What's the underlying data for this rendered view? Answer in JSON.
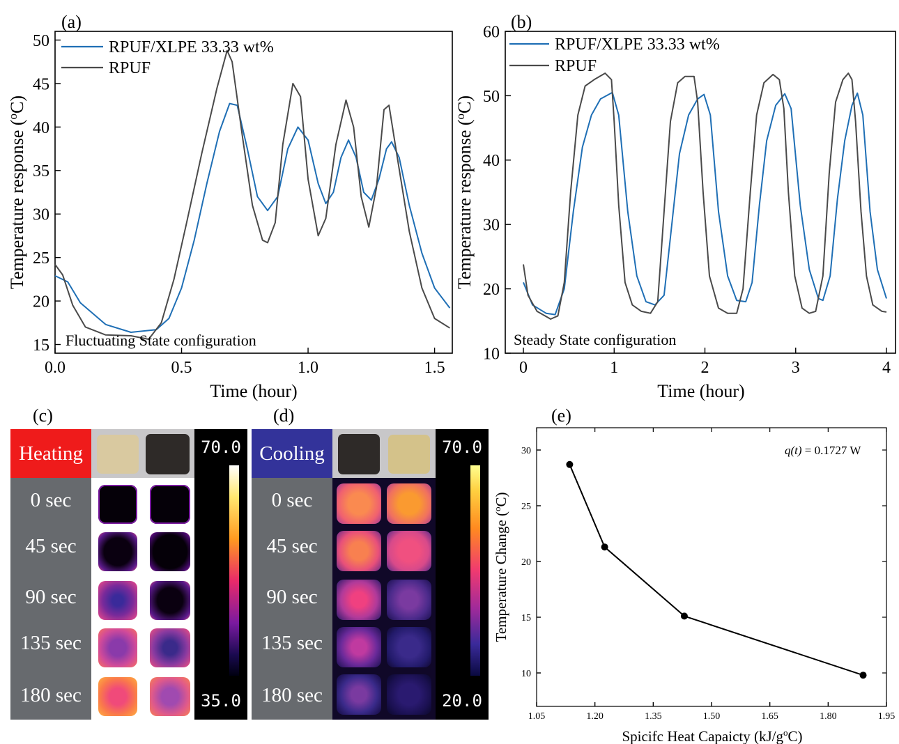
{
  "chart_data": [
    {
      "panel": "(a)",
      "type": "line",
      "xlabel": "Time (hour)",
      "ylabel": "Temperature response (oC)",
      "xlim": [
        0,
        1.57
      ],
      "ylim": [
        14,
        51
      ],
      "xticks": [
        "0.0",
        "0.5",
        "1.0",
        "1.5"
      ],
      "yticks": [
        "15",
        "20",
        "25",
        "30",
        "35",
        "40",
        "45",
        "50"
      ],
      "annotation": "Fluctuating State configuration",
      "legend_position": "top-left",
      "series": [
        {
          "name": "RPUF/XLPE 33.33 wt%",
          "color": "#1f6fb5",
          "points": [
            [
              0,
              22.9
            ],
            [
              0.05,
              22.2
            ],
            [
              0.1,
              19.8
            ],
            [
              0.2,
              17.3
            ],
            [
              0.3,
              16.4
            ],
            [
              0.4,
              16.7
            ],
            [
              0.45,
              18.0
            ],
            [
              0.5,
              21.5
            ],
            [
              0.55,
              27.0
            ],
            [
              0.6,
              33.5
            ],
            [
              0.65,
              39.5
            ],
            [
              0.69,
              42.7
            ],
            [
              0.72,
              42.5
            ],
            [
              0.76,
              37.5
            ],
            [
              0.8,
              32.0
            ],
            [
              0.84,
              30.4
            ],
            [
              0.88,
              32.0
            ],
            [
              0.92,
              37.5
            ],
            [
              0.96,
              40.0
            ],
            [
              1.0,
              38.5
            ],
            [
              1.04,
              33.5
            ],
            [
              1.07,
              31.2
            ],
            [
              1.1,
              32.5
            ],
            [
              1.13,
              36.5
            ],
            [
              1.16,
              38.5
            ],
            [
              1.19,
              36.5
            ],
            [
              1.22,
              32.5
            ],
            [
              1.25,
              31.6
            ],
            [
              1.28,
              34.0
            ],
            [
              1.31,
              37.5
            ],
            [
              1.33,
              38.3
            ],
            [
              1.36,
              36.5
            ],
            [
              1.4,
              31.0
            ],
            [
              1.45,
              25.5
            ],
            [
              1.5,
              21.5
            ],
            [
              1.56,
              19.2
            ]
          ]
        },
        {
          "name": "RPUF",
          "color": "#4a4a4a",
          "points": [
            [
              0,
              24.2
            ],
            [
              0.03,
              23.0
            ],
            [
              0.07,
              19.5
            ],
            [
              0.12,
              17.0
            ],
            [
              0.2,
              16.1
            ],
            [
              0.3,
              16.0
            ],
            [
              0.37,
              15.6
            ],
            [
              0.42,
              17.5
            ],
            [
              0.47,
              22.5
            ],
            [
              0.52,
              29.0
            ],
            [
              0.58,
              37.0
            ],
            [
              0.64,
              44.5
            ],
            [
              0.68,
              48.8
            ],
            [
              0.7,
              47.5
            ],
            [
              0.74,
              39.0
            ],
            [
              0.78,
              31.0
            ],
            [
              0.82,
              27.0
            ],
            [
              0.84,
              26.7
            ],
            [
              0.87,
              29.0
            ],
            [
              0.9,
              38.0
            ],
            [
              0.94,
              45.0
            ],
            [
              0.97,
              43.5
            ],
            [
              1.0,
              34.0
            ],
            [
              1.04,
              27.5
            ],
            [
              1.07,
              29.5
            ],
            [
              1.11,
              38.0
            ],
            [
              1.15,
              43.1
            ],
            [
              1.18,
              40.0
            ],
            [
              1.21,
              32.0
            ],
            [
              1.24,
              28.5
            ],
            [
              1.27,
              33.0
            ],
            [
              1.3,
              42.0
            ],
            [
              1.32,
              42.5
            ],
            [
              1.35,
              37.0
            ],
            [
              1.4,
              28.0
            ],
            [
              1.45,
              21.5
            ],
            [
              1.5,
              18.0
            ],
            [
              1.56,
              16.9
            ]
          ]
        }
      ]
    },
    {
      "panel": "(b)",
      "type": "line",
      "xlabel": "Time (hour)",
      "ylabel": "Temperature response (oC)",
      "xlim": [
        -0.2,
        4.1
      ],
      "ylim": [
        10,
        60
      ],
      "xticks": [
        "0",
        "1",
        "2",
        "3",
        "4"
      ],
      "yticks": [
        "10",
        "20",
        "30",
        "40",
        "50",
        "60"
      ],
      "annotation": "Steady State configuration",
      "legend_position": "top-left",
      "series": [
        {
          "name": "RPUF/XLPE 33.33 wt%",
          "color": "#1f6fb5",
          "points": [
            [
              0,
              21
            ],
            [
              0.1,
              17.5
            ],
            [
              0.25,
              16.2
            ],
            [
              0.35,
              16.0
            ],
            [
              0.45,
              20
            ],
            [
              0.55,
              32
            ],
            [
              0.65,
              42
            ],
            [
              0.75,
              47
            ],
            [
              0.85,
              49.5
            ],
            [
              0.98,
              50.5
            ],
            [
              1.05,
              47
            ],
            [
              1.15,
              32
            ],
            [
              1.25,
              22
            ],
            [
              1.35,
              18
            ],
            [
              1.45,
              17.5
            ],
            [
              1.55,
              19
            ],
            [
              1.62,
              28
            ],
            [
              1.72,
              41
            ],
            [
              1.82,
              47
            ],
            [
              1.92,
              49.5
            ],
            [
              1.99,
              50.2
            ],
            [
              2.06,
              47
            ],
            [
              2.15,
              32
            ],
            [
              2.25,
              22
            ],
            [
              2.35,
              18.2
            ],
            [
              2.45,
              18
            ],
            [
              2.52,
              21
            ],
            [
              2.6,
              33
            ],
            [
              2.68,
              43
            ],
            [
              2.78,
              48.5
            ],
            [
              2.88,
              50.3
            ],
            [
              2.95,
              48
            ],
            [
              3.05,
              33
            ],
            [
              3.15,
              23
            ],
            [
              3.25,
              18.5
            ],
            [
              3.3,
              18.2
            ],
            [
              3.38,
              22
            ],
            [
              3.46,
              34
            ],
            [
              3.54,
              43
            ],
            [
              3.62,
              48.5
            ],
            [
              3.68,
              50.4
            ],
            [
              3.74,
              47
            ],
            [
              3.82,
              32
            ],
            [
              3.9,
              23
            ],
            [
              4.0,
              18.5
            ]
          ]
        },
        {
          "name": "RPUF",
          "color": "#4a4a4a",
          "points": [
            [
              0,
              23.8
            ],
            [
              0.05,
              19
            ],
            [
              0.15,
              16.5
            ],
            [
              0.3,
              15.3
            ],
            [
              0.38,
              15.8
            ],
            [
              0.45,
              21
            ],
            [
              0.52,
              35
            ],
            [
              0.6,
              47
            ],
            [
              0.68,
              51.5
            ],
            [
              0.78,
              52.5
            ],
            [
              0.9,
              53.5
            ],
            [
              0.97,
              52.5
            ],
            [
              1.0,
              46
            ],
            [
              1.05,
              33
            ],
            [
              1.12,
              21
            ],
            [
              1.2,
              17.5
            ],
            [
              1.3,
              16.5
            ],
            [
              1.4,
              16.2
            ],
            [
              1.48,
              18
            ],
            [
              1.55,
              32
            ],
            [
              1.62,
              46
            ],
            [
              1.7,
              52
            ],
            [
              1.78,
              53
            ],
            [
              1.88,
              53
            ],
            [
              1.92,
              49
            ],
            [
              1.98,
              35
            ],
            [
              2.05,
              22
            ],
            [
              2.15,
              17
            ],
            [
              2.25,
              16.2
            ],
            [
              2.35,
              16.2
            ],
            [
              2.42,
              20
            ],
            [
              2.5,
              35
            ],
            [
              2.57,
              47
            ],
            [
              2.65,
              52
            ],
            [
              2.75,
              53.3
            ],
            [
              2.82,
              52.5
            ],
            [
              2.87,
              48
            ],
            [
              2.92,
              35
            ],
            [
              2.99,
              22
            ],
            [
              3.07,
              17
            ],
            [
              3.15,
              16.2
            ],
            [
              3.22,
              16.5
            ],
            [
              3.3,
              22
            ],
            [
              3.37,
              38
            ],
            [
              3.44,
              49
            ],
            [
              3.52,
              52.5
            ],
            [
              3.58,
              53.5
            ],
            [
              3.62,
              52.5
            ],
            [
              3.66,
              46
            ],
            [
              3.72,
              32
            ],
            [
              3.78,
              22
            ],
            [
              3.85,
              17.5
            ],
            [
              3.95,
              16.5
            ],
            [
              4.0,
              16.4
            ]
          ]
        }
      ]
    },
    {
      "panel": "(e)",
      "type": "line",
      "xlabel": "Spicifc Heat Capaicty (kJ/goC)",
      "ylabel": "Temperature Change (oC)",
      "xlim": [
        1.05,
        1.95
      ],
      "ylim": [
        7,
        32
      ],
      "xticks": [
        "1.05",
        "1.20",
        "1.35",
        "1.50",
        "1.65",
        "1.80",
        "1.95"
      ],
      "yticks": [
        "10",
        "15",
        "20",
        "25",
        "30"
      ],
      "annotation": "q(t) = 0.1727 W",
      "series": [
        {
          "color": "#000000",
          "points": [
            [
              1.135,
              28.7
            ],
            [
              1.225,
              21.3
            ],
            [
              1.43,
              15.1
            ],
            [
              1.89,
              9.8
            ]
          ]
        }
      ]
    }
  ],
  "thermal": {
    "c_label": "(c)",
    "d_label": "(d)",
    "heating_label": "Heating",
    "cooling_label": "Cooling",
    "times": [
      "0 sec",
      "45 sec",
      "90 sec",
      "135 sec",
      "180 sec"
    ],
    "heating_scale": {
      "max": "70.0",
      "min": "35.0"
    },
    "cooling_scale": {
      "max": "70.0",
      "min": "20.0"
    },
    "heating_color": "#ef1b1b",
    "cooling_color": "#33339a"
  }
}
